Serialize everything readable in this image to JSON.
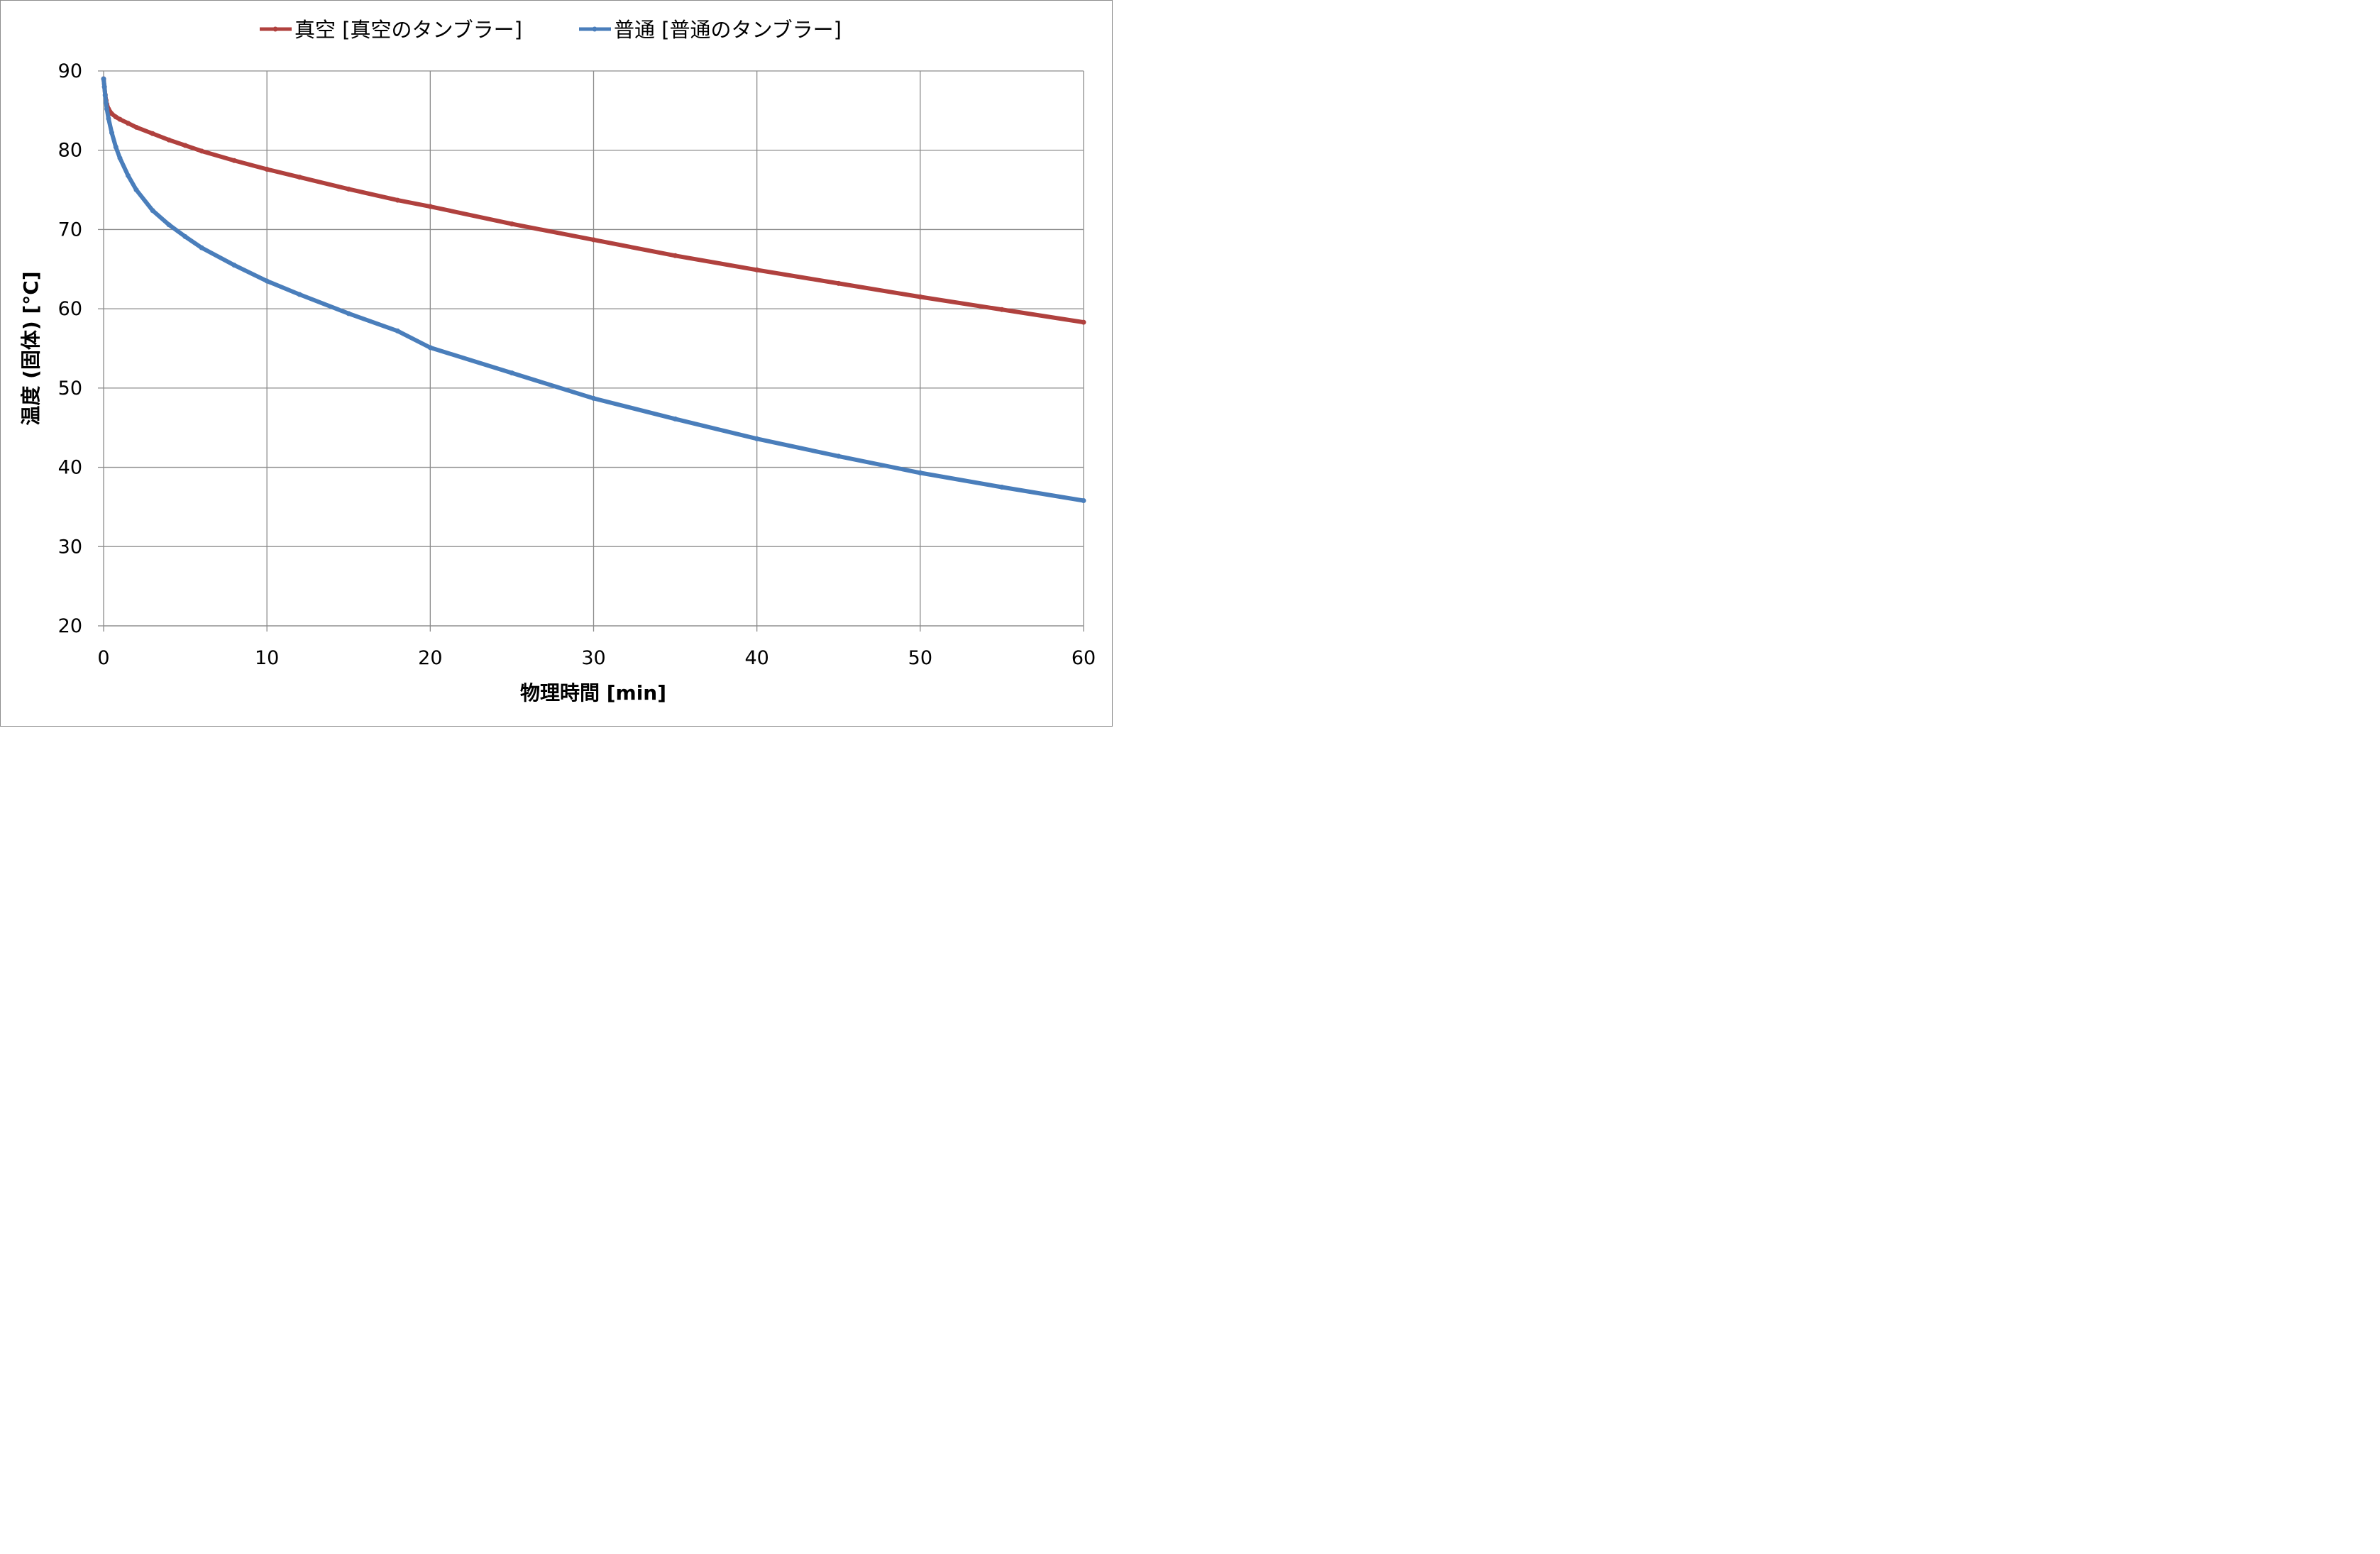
{
  "chart_data": {
    "type": "line",
    "xlabel": "物理時間 [min]",
    "ylabel": "温度 (固体) [°C]",
    "xlim": [
      0,
      60
    ],
    "ylim": [
      20,
      90
    ],
    "xticks": [
      0,
      10,
      20,
      30,
      40,
      50,
      60
    ],
    "yticks": [
      20,
      30,
      40,
      50,
      60,
      70,
      80,
      90
    ],
    "grid": true,
    "legend_position": "top",
    "series": [
      {
        "name": "真空 [真空のタンブラー]",
        "color": "#B0413E",
        "x": [
          0,
          0.05,
          0.1,
          0.15,
          0.2,
          0.3,
          0.5,
          0.75,
          1,
          1.5,
          2,
          3,
          4,
          5,
          6,
          8,
          10,
          12,
          15,
          18,
          20,
          25,
          30,
          35,
          40,
          45,
          50,
          55,
          60
        ],
        "y": [
          89.0,
          88.0,
          87.0,
          86.3,
          85.8,
          85.2,
          84.6,
          84.2,
          83.9,
          83.4,
          82.9,
          82.1,
          81.3,
          80.6,
          79.9,
          78.7,
          77.6,
          76.6,
          75.1,
          73.7,
          72.9,
          70.7,
          68.7,
          66.7,
          64.9,
          63.2,
          61.5,
          59.9,
          58.3
        ]
      },
      {
        "name": "普通 [普通のタンブラー]",
        "color": "#4A7EBB",
        "x": [
          0,
          0.05,
          0.1,
          0.15,
          0.2,
          0.3,
          0.5,
          0.75,
          1,
          1.5,
          2,
          3,
          4,
          5,
          6,
          8,
          10,
          12,
          15,
          18,
          20,
          25,
          30,
          35,
          40,
          45,
          50,
          55,
          60
        ],
        "y": [
          89.0,
          88.0,
          86.9,
          86.0,
          85.2,
          84.0,
          82.2,
          80.4,
          79.0,
          76.8,
          75.0,
          72.4,
          70.6,
          69.1,
          67.7,
          65.5,
          63.5,
          61.8,
          59.4,
          57.2,
          55.1,
          51.9,
          48.7,
          46.1,
          43.6,
          41.4,
          39.3,
          37.5,
          35.8
        ]
      }
    ]
  }
}
